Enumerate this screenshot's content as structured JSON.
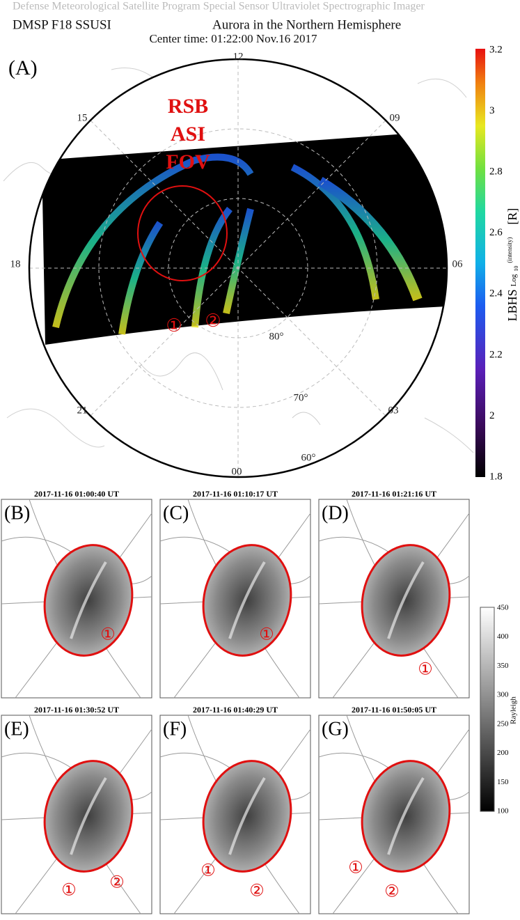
{
  "header": {
    "programs": "Defense Meteorological Satellite Program      Special Sensor Ultraviolet Spectrographic Imager",
    "instrument": "DMSP  F18  SSUSI",
    "title": "Aurora in the Northern Hemisphere",
    "center_time": "Center time:   01:22:00   Nov.16 2017"
  },
  "panel_a": {
    "label": "(A)",
    "hours": [
      "12",
      "15",
      "09",
      "18",
      "06",
      "21",
      "03",
      "00"
    ],
    "latitudes": [
      "80°",
      "70°",
      "60°"
    ],
    "fov_label": [
      "RSB",
      "ASI",
      "FOV"
    ],
    "markers": [
      "①",
      "②"
    ],
    "colorbar": {
      "ticks": [
        "3.2",
        "3",
        "2.8",
        "2.6",
        "2.4",
        "2.2",
        "2",
        "1.8"
      ],
      "label": "LBHS",
      "log": "Log",
      "log_sub": "10",
      "log_sup": "(intensity)",
      "unit": "[R]"
    }
  },
  "panels": [
    {
      "label": "(B)",
      "title": "2017-11-16  01:00:40 UT",
      "markers": [
        "①"
      ]
    },
    {
      "label": "(C)",
      "title": "2017-11-16  01:10:17 UT",
      "markers": [
        "①"
      ]
    },
    {
      "label": "(D)",
      "title": "2017-11-16  01:21:16 UT",
      "markers": [
        "①"
      ]
    },
    {
      "label": "(E)",
      "title": "2017-11-16  01:30:52 UT",
      "markers": [
        "①",
        "②"
      ]
    },
    {
      "label": "(F)",
      "title": "2017-11-16  01:40:29 UT",
      "markers": [
        "①",
        "②"
      ]
    },
    {
      "label": "(G)",
      "title": "2017-11-16  01:50:05 UT",
      "markers": [
        "①",
        "②"
      ]
    }
  ],
  "gray_colorbar": {
    "ticks": [
      "450",
      "400",
      "350",
      "300",
      "250",
      "200",
      "150",
      "100"
    ],
    "label": "Rayleigh"
  }
}
